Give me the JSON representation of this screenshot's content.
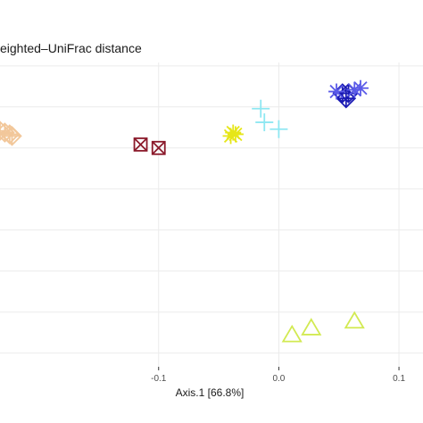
{
  "chart_data": {
    "type": "scatter",
    "title": "eighted–UniFrac distance",
    "xlabel": "Axis.1   [66.8%]",
    "ylabel": "",
    "xlim": [
      -0.232,
      0.12
    ],
    "ylim": [
      -0.093,
      0.085
    ],
    "grid": true,
    "legend": "none",
    "x_ticks": [
      {
        "value": -0.1,
        "label": "-0.1"
      },
      {
        "value": 0.0,
        "label": "0.0"
      },
      {
        "value": 0.1,
        "label": "0.1"
      }
    ],
    "y_grid_values": [
      -0.085,
      -0.061,
      -0.037,
      -0.013,
      0.011,
      0.035,
      0.059,
      0.083
    ],
    "series": [
      {
        "marker": "open-diamond",
        "color": "#f2c79a",
        "points": [
          [
            -0.232,
            0.045
          ],
          [
            -0.228,
            0.044
          ],
          [
            -0.224,
            0.043
          ],
          [
            -0.222,
            0.042
          ]
        ]
      },
      {
        "marker": "boxed-x",
        "color": "#8b1a2b",
        "points": [
          [
            -0.115,
            0.037
          ],
          [
            -0.1,
            0.035
          ]
        ]
      },
      {
        "marker": "asterisk",
        "color": "#e6e619",
        "points": [
          [
            -0.04,
            0.042
          ],
          [
            -0.038,
            0.044
          ],
          [
            -0.036,
            0.043
          ]
        ]
      },
      {
        "marker": "plus",
        "color": "#8ee7f2",
        "points": [
          [
            -0.015,
            0.058
          ],
          [
            -0.012,
            0.05
          ],
          [
            0.0,
            0.046
          ]
        ]
      },
      {
        "marker": "open-diamond",
        "color": "#1a1ab3",
        "points": [
          [
            0.053,
            0.067
          ],
          [
            0.056,
            0.064
          ],
          [
            0.058,
            0.067
          ]
        ]
      },
      {
        "marker": "asterisk",
        "color": "#5b5be8",
        "points": [
          [
            0.048,
            0.068
          ],
          [
            0.063,
            0.069
          ],
          [
            0.068,
            0.07
          ]
        ]
      },
      {
        "marker": "open-triangle",
        "color": "#d2ea52",
        "points": [
          [
            0.011,
            -0.074
          ],
          [
            0.027,
            -0.07
          ],
          [
            0.063,
            -0.066
          ]
        ]
      }
    ]
  }
}
